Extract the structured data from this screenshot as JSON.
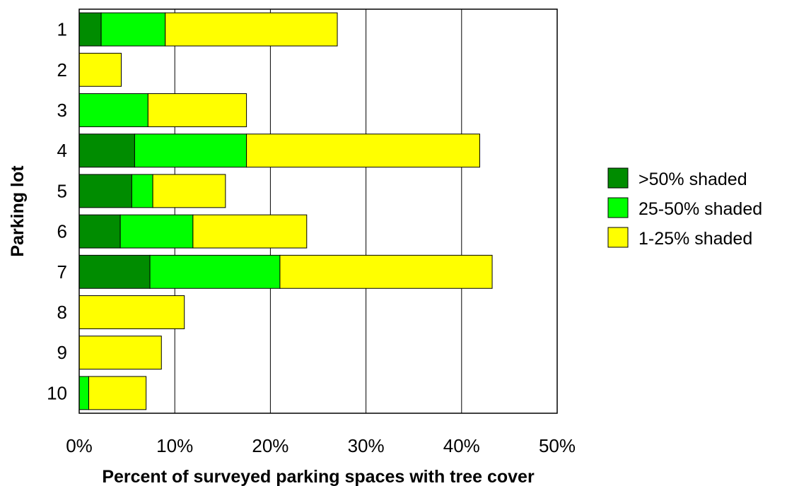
{
  "chart_data": {
    "type": "bar",
    "orientation": "horizontal",
    "stacked": true,
    "title": "",
    "xlabel": "Percent of surveyed parking spaces with tree cover",
    "ylabel": "Parking lot",
    "xlim": [
      0,
      50
    ],
    "x_ticks": [
      "0%",
      "10%",
      "20%",
      "30%",
      "40%",
      "50%"
    ],
    "x_tick_values": [
      0,
      10,
      20,
      30,
      40,
      50
    ],
    "categories": [
      "1",
      "2",
      "3",
      "4",
      "5",
      "6",
      "7",
      "8",
      "9",
      "10"
    ],
    "series": [
      {
        "name": ">50% shaded",
        "color": "#008C00",
        "values": [
          2.3,
          0,
          0,
          5.8,
          5.5,
          4.3,
          7.4,
          0,
          0,
          0
        ]
      },
      {
        "name": "25-50% shaded",
        "color": "#00FF00",
        "values": [
          6.7,
          0,
          7.2,
          11.7,
          2.2,
          7.6,
          13.6,
          0,
          0,
          1.0
        ]
      },
      {
        "name": "1-25% shaded",
        "color": "#FFFF00",
        "values": [
          18.0,
          4.4,
          10.3,
          24.4,
          7.6,
          11.9,
          22.2,
          11.0,
          8.6,
          6.0
        ]
      }
    ],
    "grid": "vertical",
    "legend_position": "right"
  }
}
